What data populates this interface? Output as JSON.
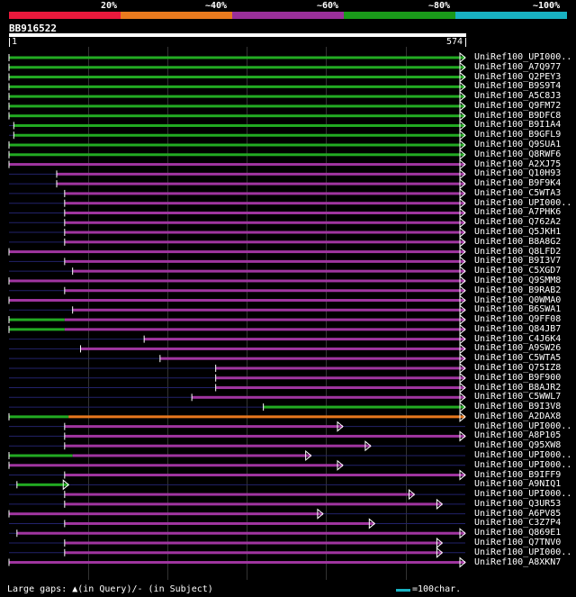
{
  "legend": {
    "items": [
      {
        "label": "20%",
        "color": "#e8193c"
      },
      {
        "label": "~40%",
        "color": "#e87a1e"
      },
      {
        "label": "~60%",
        "color": "#9a2f9a"
      },
      {
        "label": "~80%",
        "color": "#1a9a1a"
      },
      {
        "label": "~100%",
        "color": "#18b2c2"
      }
    ]
  },
  "query": {
    "id": "BB916522",
    "start_label": "1",
    "end_label": "574",
    "length": 574
  },
  "colors": {
    "green": "#22aa22",
    "purple": "#a035a0",
    "orange": "#e8781e",
    "gap": "#22226a",
    "marker": "#ffffaa"
  },
  "hits": [
    {
      "label": "UniRef100_UPI000..",
      "color": "green",
      "start": 0,
      "end": 574
    },
    {
      "label": "UniRef100_A7Q977",
      "color": "green",
      "start": 0,
      "end": 574
    },
    {
      "label": "UniRef100_Q2PEY3",
      "color": "green",
      "start": 0,
      "end": 574
    },
    {
      "label": "UniRef100_B9S9T4",
      "color": "green",
      "start": 0,
      "end": 574
    },
    {
      "label": "UniRef100_A5C8J3",
      "color": "green",
      "start": 0,
      "end": 574
    },
    {
      "label": "UniRef100_Q9FM72",
      "color": "green",
      "start": 0,
      "end": 574
    },
    {
      "label": "UniRef100_B9DFC8",
      "color": "green",
      "start": 0,
      "end": 574
    },
    {
      "label": "UniRef100_B9I1A4",
      "color": "green",
      "start": 6,
      "end": 574
    },
    {
      "label": "UniRef100_B9GFL9",
      "color": "green",
      "start": 6,
      "end": 574
    },
    {
      "label": "UniRef100_Q9SUA1",
      "color": "green",
      "start": 0,
      "end": 574
    },
    {
      "label": "UniRef100_Q8RWF6",
      "color": "green",
      "start": 0,
      "end": 574
    },
    {
      "label": "UniRef100_A2XJ75",
      "color": "purple",
      "start": 0,
      "end": 574
    },
    {
      "label": "UniRef100_Q10H93",
      "color": "purple",
      "start": 60,
      "end": 574
    },
    {
      "label": "UniRef100_B9F9K4",
      "color": "purple",
      "start": 60,
      "end": 574
    },
    {
      "label": "UniRef100_C5WTA3",
      "color": "purple",
      "start": 70,
      "end": 574
    },
    {
      "label": "UniRef100_UPI000..",
      "color": "purple",
      "start": 70,
      "end": 574
    },
    {
      "label": "UniRef100_A7PHK6",
      "color": "purple",
      "start": 70,
      "end": 574
    },
    {
      "label": "UniRef100_Q762A2",
      "color": "purple",
      "start": 70,
      "end": 574
    },
    {
      "label": "UniRef100_Q5JKH1",
      "color": "purple",
      "start": 70,
      "end": 574
    },
    {
      "label": "UniRef100_B8A8G2",
      "color": "purple",
      "start": 70,
      "end": 574
    },
    {
      "label": "UniRef100_Q8LFD2",
      "color": "purple",
      "start": 0,
      "end": 574
    },
    {
      "label": "UniRef100_B9I3V7",
      "color": "purple",
      "start": 70,
      "end": 574
    },
    {
      "label": "UniRef100_C5XGD7",
      "color": "purple",
      "start": 80,
      "end": 574
    },
    {
      "label": "UniRef100_Q9SMM8",
      "color": "purple",
      "start": 0,
      "end": 574
    },
    {
      "label": "UniRef100_B9RAB2",
      "color": "purple",
      "start": 70,
      "end": 574
    },
    {
      "label": "UniRef100_Q0WMA0",
      "color": "purple",
      "start": 0,
      "end": 574
    },
    {
      "label": "UniRef100_B6SWA1",
      "color": "purple",
      "start": 80,
      "end": 574
    },
    {
      "label": "UniRef100_Q9FF08",
      "color": "purple",
      "start": 0,
      "end": 574,
      "green_end": 70
    },
    {
      "label": "UniRef100_Q84JB7",
      "color": "purple",
      "start": 0,
      "end": 574,
      "green_end": 70
    },
    {
      "label": "UniRef100_C4J6K4",
      "color": "purple",
      "start": 170,
      "end": 574
    },
    {
      "label": "UniRef100_A9SW26",
      "color": "purple",
      "start": 90,
      "end": 574
    },
    {
      "label": "UniRef100_C5WTA5",
      "color": "purple",
      "start": 190,
      "end": 574
    },
    {
      "label": "UniRef100_Q75IZ8",
      "color": "purple",
      "start": 260,
      "end": 574
    },
    {
      "label": "UniRef100_B9F900",
      "color": "purple",
      "start": 260,
      "end": 574
    },
    {
      "label": "UniRef100_B8AJR2",
      "color": "purple",
      "start": 260,
      "end": 574
    },
    {
      "label": "UniRef100_C5WWL7",
      "color": "purple",
      "start": 230,
      "end": 574
    },
    {
      "label": "UniRef100_B9I3V8",
      "color": "green",
      "start": 320,
      "end": 574
    },
    {
      "label": "UniRef100_A2DAX8",
      "color": "orange",
      "start": 0,
      "end": 574,
      "green_end": 75
    },
    {
      "label": "UniRef100_UPI000..",
      "color": "purple",
      "start": 70,
      "end": 420
    },
    {
      "label": "UniRef100_A8P105",
      "color": "purple",
      "start": 70,
      "end": 574
    },
    {
      "label": "UniRef100_Q95XW8",
      "color": "purple",
      "start": 70,
      "end": 455
    },
    {
      "label": "UniRef100_UPI000..",
      "color": "purple",
      "start": 0,
      "end": 380,
      "green_end": 80
    },
    {
      "label": "UniRef100_UPI000..",
      "color": "purple",
      "start": 0,
      "end": 420
    },
    {
      "label": "UniRef100_B9IFF9",
      "color": "purple",
      "start": 70,
      "end": 574
    },
    {
      "label": "UniRef100_A9NIQ1",
      "color": "green",
      "start": 10,
      "end": 75
    },
    {
      "label": "UniRef100_UPI000..",
      "color": "purple",
      "start": 70,
      "end": 510
    },
    {
      "label": "UniRef100_Q3UR53",
      "color": "purple",
      "start": 70,
      "end": 545
    },
    {
      "label": "UniRef100_A6PV85",
      "color": "purple",
      "start": 0,
      "end": 395
    },
    {
      "label": "UniRef100_C3Z7P4",
      "color": "purple",
      "start": 70,
      "end": 460
    },
    {
      "label": "UniRef100_Q869E1",
      "color": "purple",
      "start": 10,
      "end": 574
    },
    {
      "label": "UniRef100_Q7TNV0",
      "color": "purple",
      "start": 70,
      "end": 545
    },
    {
      "label": "UniRef100_UPI000..",
      "color": "purple",
      "start": 70,
      "end": 545
    },
    {
      "label": "UniRef100_A8XKN7",
      "color": "purple",
      "start": 0,
      "end": 574
    }
  ],
  "footer": {
    "note": "Large gaps: ▲(in Query)/- (in Subject)",
    "scale_label": "=100char.",
    "scale_color": "#18b2c2"
  }
}
